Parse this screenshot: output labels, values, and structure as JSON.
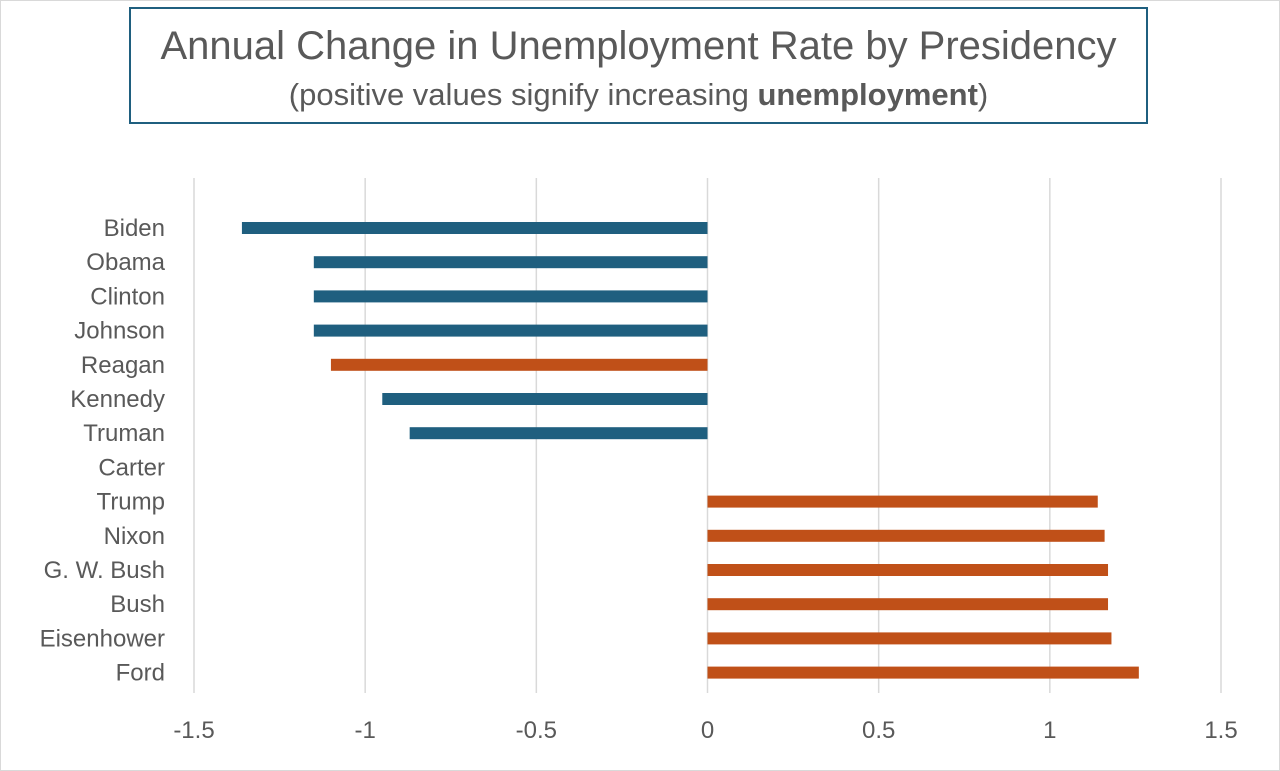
{
  "chart_data": {
    "type": "bar",
    "orientation": "horizontal",
    "title": "Annual Change in Unemployment Rate by Presidency",
    "subtitle_prefix": "(positive values signify increasing ",
    "subtitle_bold": "unemployment",
    "subtitle_suffix": ")",
    "xlim": [
      -1.5,
      1.5
    ],
    "xticks": [
      -1.5,
      -1,
      -0.5,
      0,
      0.5,
      1,
      1.5
    ],
    "xtick_labels": [
      "-1.5",
      "-1",
      "-0.5",
      "0",
      "0.5",
      "1",
      "1.5"
    ],
    "grid": true,
    "colors": {
      "Democrat": "#1f5f7f",
      "Republican": "#c05018"
    },
    "categories": [
      "Biden",
      "Obama",
      "Clinton",
      "Johnson",
      "Reagan",
      "Kennedy",
      "Truman",
      "Carter",
      "Trump",
      "Nixon",
      "G. W. Bush",
      "Bush",
      "Eisenhower",
      "Ford"
    ],
    "values": [
      -1.36,
      -1.15,
      -1.15,
      -1.15,
      -1.1,
      -0.95,
      -0.87,
      0.0,
      1.14,
      1.16,
      1.17,
      1.17,
      1.18,
      1.26
    ],
    "party": [
      "Democrat",
      "Democrat",
      "Democrat",
      "Democrat",
      "Republican",
      "Democrat",
      "Democrat",
      "Democrat",
      "Republican",
      "Republican",
      "Republican",
      "Republican",
      "Republican",
      "Republican"
    ]
  }
}
